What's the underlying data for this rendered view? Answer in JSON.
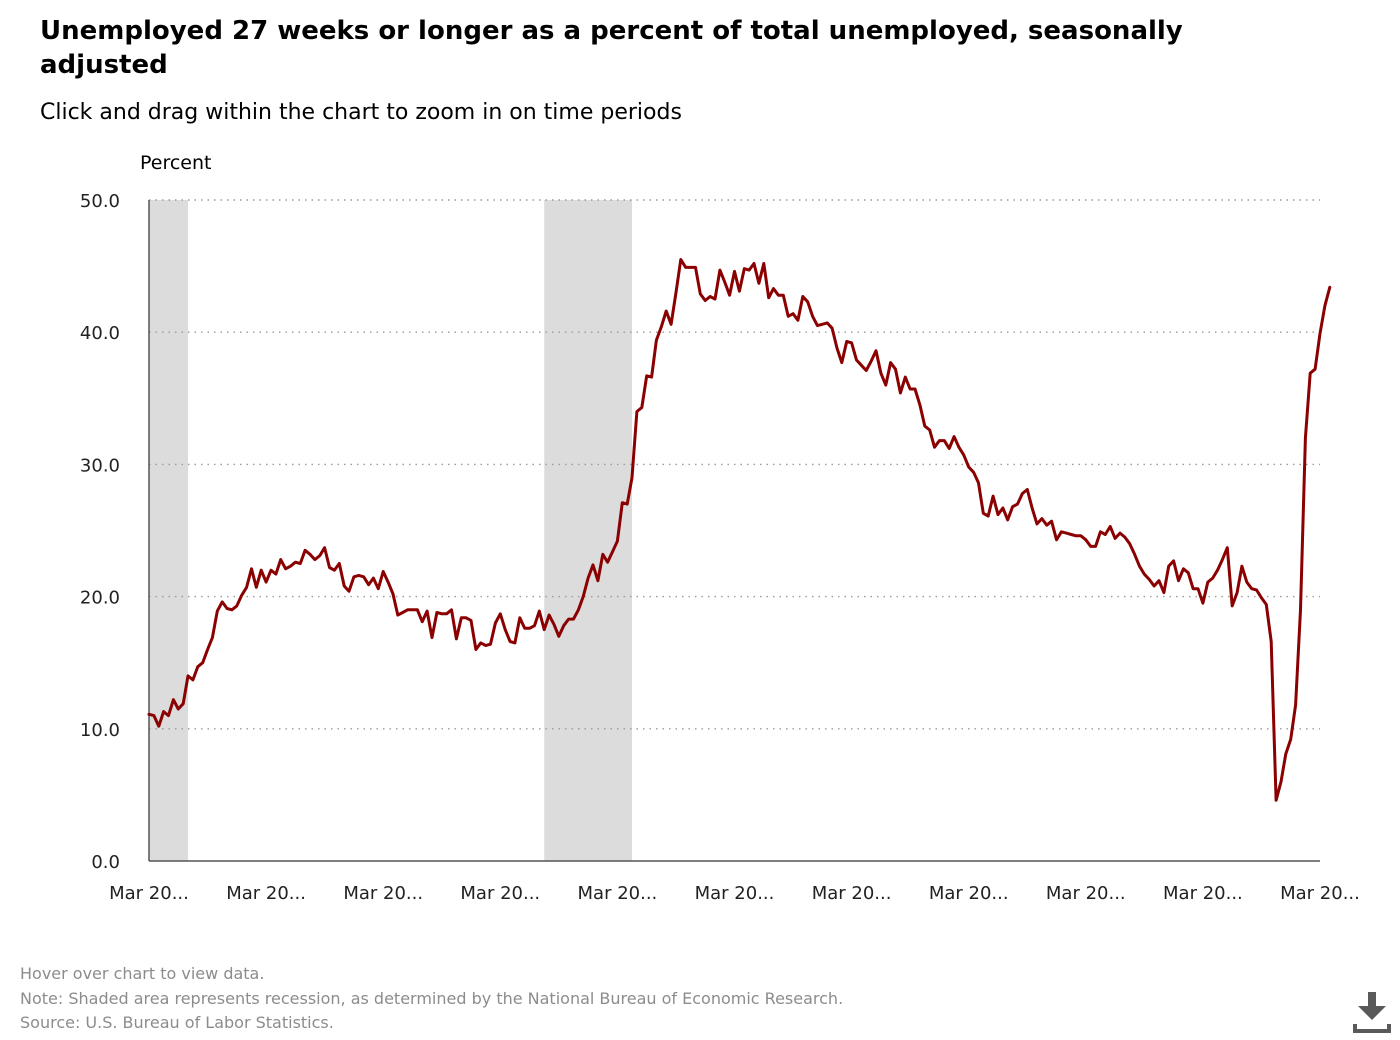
{
  "header": {
    "title": "Unemployed 27 weeks or longer as a percent of total unemployed, seasonally adjusted",
    "subtitle": "Click and drag within the chart to zoom in on time periods"
  },
  "footer": {
    "hover_note": "Hover over chart to view data.",
    "recession_note": "Note: Shaded area represents recession, as determined by the National Bureau of Economic Research.",
    "source": "Source: U.S. Bureau of Labor Statistics."
  },
  "download_icon": "download-icon",
  "chart_data": {
    "type": "line",
    "ylabel": "Percent",
    "ylim": [
      0,
      50
    ],
    "yticks": [
      "0.0",
      "10.0",
      "20.0",
      "30.0",
      "40.0",
      "50.0"
    ],
    "x_tick_labels": [
      "Mar 20...",
      "Mar 20...",
      "Mar 20...",
      "Mar 20...",
      "Mar 20...",
      "Mar 20...",
      "Mar 20...",
      "Mar 20...",
      "Mar 20...",
      "Mar 20...",
      "Mar 20..."
    ],
    "x_start_month": "Mar 2001",
    "x_end_month": "Mar 2021",
    "recession_shading": [
      [
        "Mar 2001",
        "Nov 2001"
      ],
      [
        "Dec 2007",
        "Jun 2009"
      ]
    ],
    "grid": "horizontal dotted",
    "line_color": "#8b0000",
    "recession_color": "#dcdcdc",
    "series": [
      {
        "monthly_values_from_Mar_2001": [
          11.1,
          11.0,
          10.2,
          11.3,
          11.0,
          12.2,
          11.5,
          11.9,
          14.0,
          13.7,
          14.7,
          15.0,
          16.0,
          16.9,
          18.9,
          19.6,
          19.1,
          19.0,
          19.3,
          20.1,
          20.7,
          22.1,
          20.7,
          22.0,
          21.1,
          22.0,
          21.7,
          22.8,
          22.1,
          22.3,
          22.6,
          22.5,
          23.5,
          23.2,
          22.8,
          23.1,
          23.7,
          22.2,
          22.0,
          22.5,
          20.8,
          20.4,
          21.5,
          21.6,
          21.5,
          20.9,
          21.4,
          20.6,
          21.9,
          21.1,
          20.2,
          18.6,
          18.8,
          19.0,
          19.0,
          19.0,
          18.1,
          18.9,
          16.9,
          18.8,
          18.7,
          18.7,
          19.0,
          16.8,
          18.4,
          18.4,
          18.2,
          16.0,
          16.5,
          16.3,
          16.4,
          18.0,
          18.7,
          17.5,
          16.6,
          16.5,
          18.4,
          17.6,
          17.6,
          17.8,
          18.9,
          17.5,
          18.6,
          17.9,
          17.0,
          17.8,
          18.3,
          18.3,
          19.0,
          20.0,
          21.4,
          22.4,
          21.2,
          23.2,
          22.6,
          23.4,
          24.2,
          27.1,
          27.0,
          29.0,
          34.0,
          34.3,
          36.7,
          36.6,
          39.4,
          40.4,
          41.6,
          40.6,
          43.0,
          45.5,
          44.9,
          44.9,
          44.9,
          42.9,
          42.4,
          42.7,
          42.5,
          44.7,
          43.8,
          42.8,
          44.6,
          43.1,
          44.8,
          44.7,
          45.2,
          43.7,
          45.2,
          42.6,
          43.3,
          42.8,
          42.8,
          41.2,
          41.4,
          40.9,
          42.7,
          42.3,
          41.2,
          40.5,
          40.6,
          40.7,
          40.3,
          38.8,
          37.7,
          39.3,
          39.2,
          37.9,
          37.5,
          37.1,
          37.8,
          38.6,
          36.9,
          36.0,
          37.7,
          37.2,
          35.4,
          36.6,
          35.7,
          35.7,
          34.5,
          32.9,
          32.6,
          31.3,
          31.8,
          31.8,
          31.2,
          32.1,
          31.3,
          30.7,
          29.8,
          29.4,
          28.6,
          26.3,
          26.1,
          27.6,
          26.2,
          26.7,
          25.8,
          26.8,
          27.0,
          27.8,
          28.1,
          26.7,
          25.5,
          25.9,
          25.4,
          25.7,
          24.3,
          24.9,
          24.8,
          24.7,
          24.6,
          24.6,
          24.3,
          23.8,
          23.8,
          24.9,
          24.7,
          25.3,
          24.4,
          24.8,
          24.5,
          24.0,
          23.2,
          22.3,
          21.7,
          21.3,
          20.8,
          21.2,
          20.3,
          22.3,
          22.7,
          21.2,
          22.1,
          21.8,
          20.6,
          20.6,
          19.5,
          21.1,
          21.4,
          22.0,
          22.8,
          23.7,
          19.3,
          20.3,
          22.3,
          21.1,
          20.6,
          20.5,
          19.9,
          19.4,
          16.6,
          4.6,
          6.0,
          8.1,
          9.2,
          11.8,
          19.0,
          32.0,
          36.9,
          37.2,
          39.9,
          42.0,
          43.4
        ]
      }
    ]
  }
}
